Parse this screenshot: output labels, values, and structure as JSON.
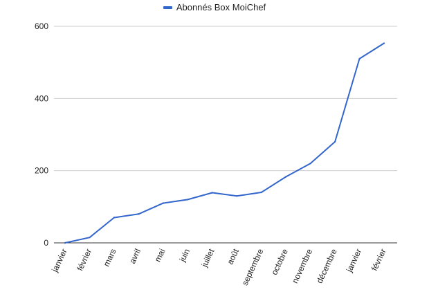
{
  "chart_data": {
    "type": "line",
    "categories": [
      "janvier",
      "février",
      "mars",
      "avril",
      "mai",
      "juin",
      "juillet",
      "août",
      "septembre",
      "octobre",
      "novembre",
      "décembre",
      "janvier",
      "février"
    ],
    "series": [
      {
        "name": "Abonnés Box MoiChef",
        "color": "#3366cc",
        "values": [
          0,
          15,
          70,
          80,
          110,
          120,
          139,
          130,
          140,
          183,
          220,
          280,
          510,
          553
        ]
      }
    ],
    "yticks": [
      0,
      200,
      400,
      600
    ],
    "ylim": [
      0,
      600
    ],
    "grid": true,
    "legend_position": "top-center"
  }
}
